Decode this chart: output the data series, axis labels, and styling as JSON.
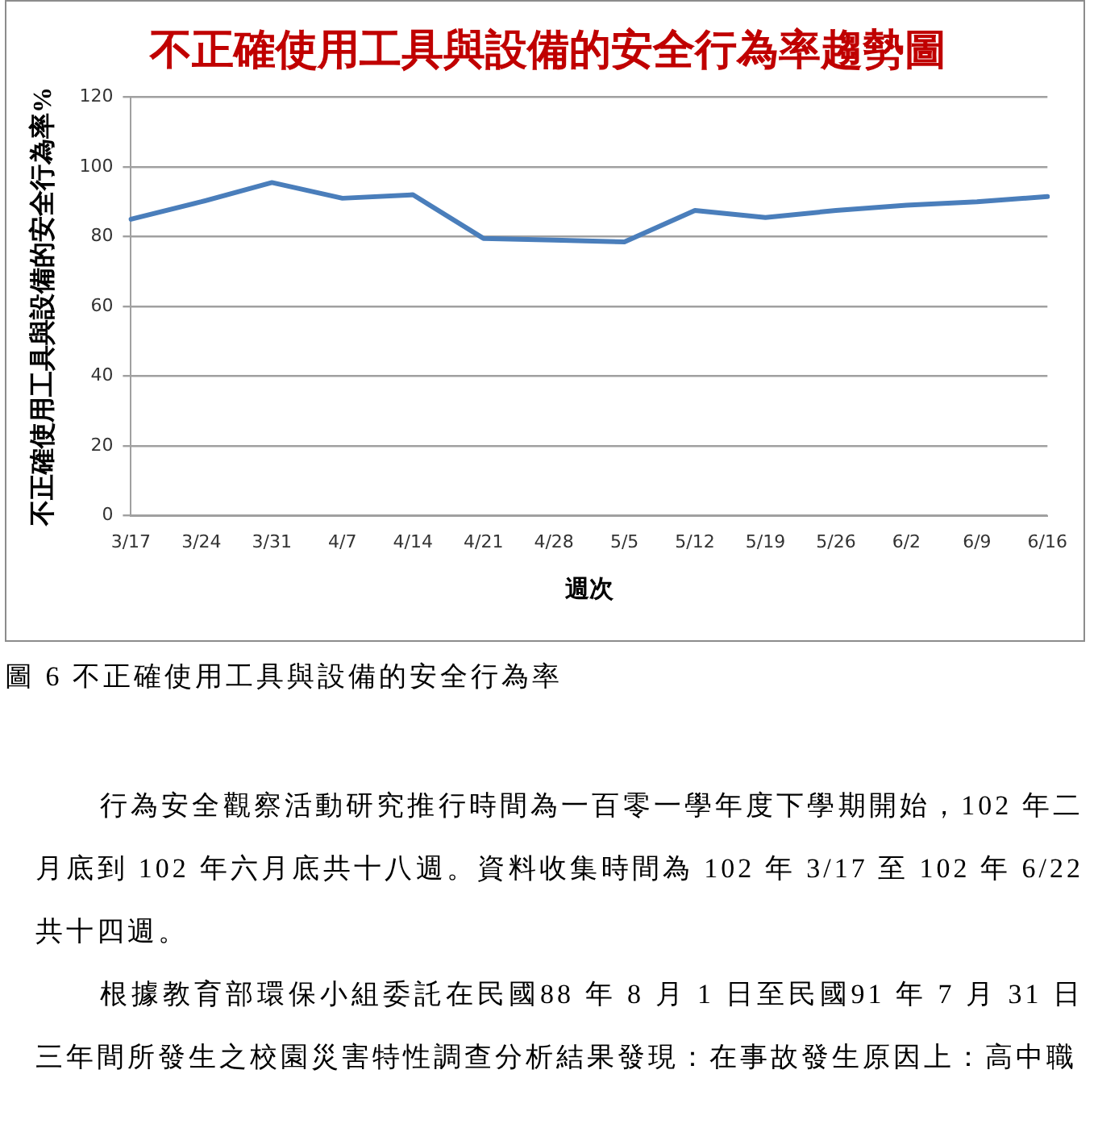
{
  "chart_data": {
    "type": "line",
    "title": "不正確使用工具與設備的安全行為率趨勢圖",
    "xlabel": "週次",
    "ylabel": "不正確使用工具與設備的安全行為率%",
    "categories": [
      "3/17",
      "3/24",
      "3/31",
      "4/7",
      "4/14",
      "4/21",
      "4/28",
      "5/5",
      "5/12",
      "5/19",
      "5/26",
      "6/2",
      "6/9",
      "6/16"
    ],
    "series": [
      {
        "color": "#4a7ebb",
        "values": [
          85,
          90,
          95.5,
          91,
          92,
          79.5,
          79,
          78.5,
          87.5,
          85.5,
          87.5,
          89,
          90,
          91.5
        ]
      }
    ],
    "ylim": [
      0,
      120
    ],
    "yticks": [
      0,
      20,
      40,
      60,
      80,
      100,
      120
    ],
    "grid": "y",
    "marker": "none",
    "annotations": [
      "圖 6 不正確使用工具與設備的安全行為率",
      "行為安全觀察活動研究推行時間為一百零一學年度下學期開始，102 年二月底到 102 年六月底共十八週。資料收集時間為 102 年 3/17 至 102 年 6/22 共十四週。",
      "根據教育部環保小組委託在民國88 年 8 月 1 日至民國91 年 7 月 31 日三年間所發生之校園災害特性調查分析結果發現：在事故發生原因上：高中職"
    ]
  }
}
